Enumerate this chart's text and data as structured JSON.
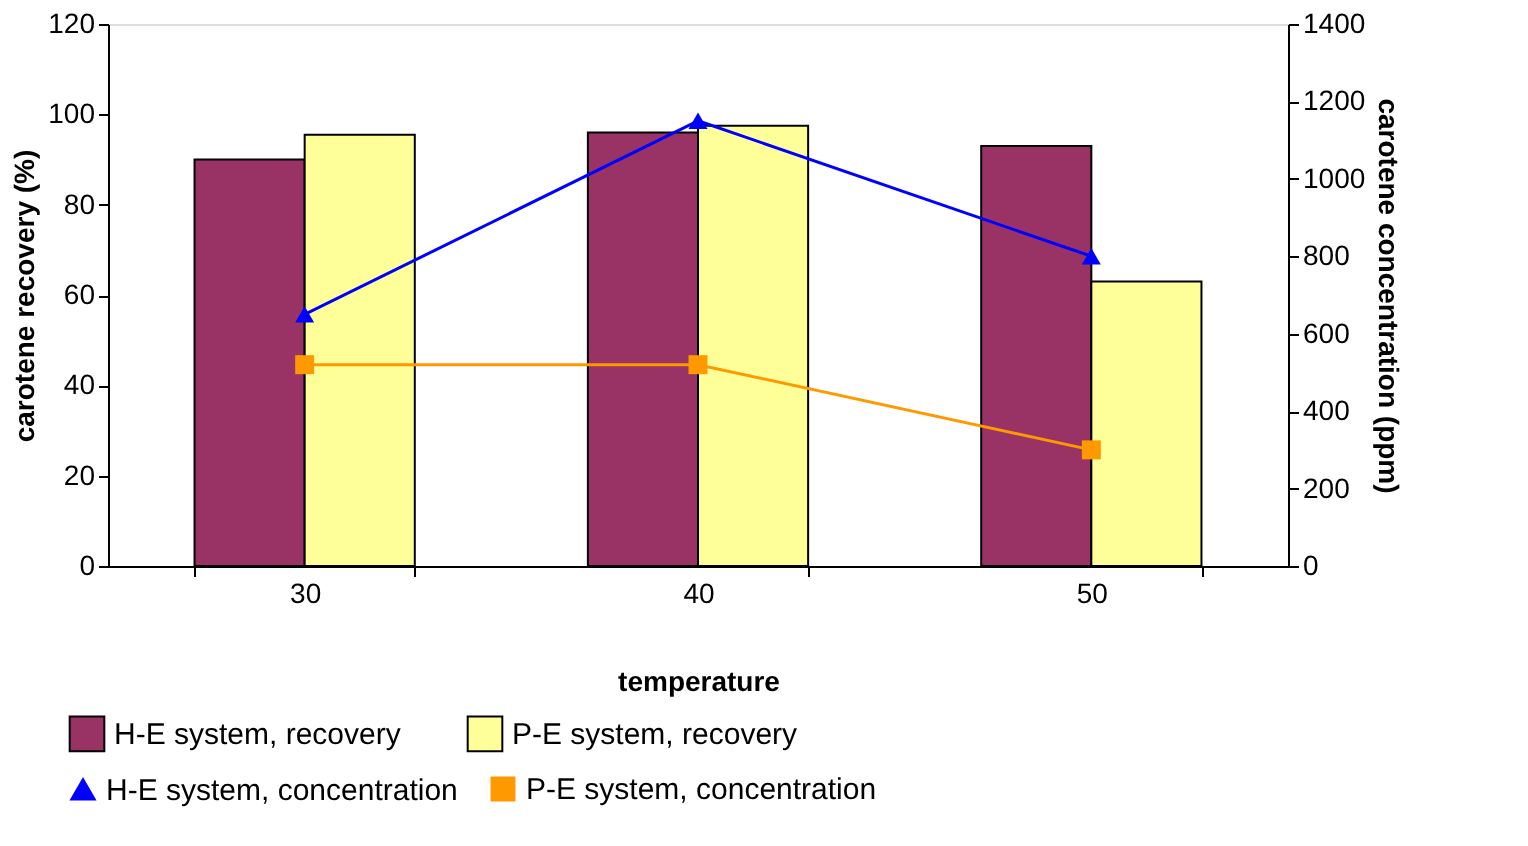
{
  "chart_data": {
    "type": "bar",
    "xlabel": "temperature",
    "ylabel": "carotene recovery (%)",
    "y2label": "carotene concentration (ppm)",
    "categories": [
      "30",
      "40",
      "50"
    ],
    "series": [
      {
        "name": "H-E system, recovery",
        "color": "#993366",
        "values": [
          90,
          96,
          93
        ]
      },
      {
        "name": "P-E system, recovery",
        "color": "#ffff99",
        "values": [
          95.5,
          97.5,
          63
        ]
      },
      {
        "name": "H-E system, concentration",
        "type": "line",
        "axis": "y2",
        "marker": "triangle",
        "color": "#0000ff",
        "values": [
          650,
          1150,
          800
        ]
      },
      {
        "name": "P-E system, concentration",
        "type": "line",
        "axis": "y2",
        "marker": "square",
        "color": "#ff9900",
        "values": [
          520,
          520,
          300
        ]
      }
    ],
    "ylim": [
      0,
      120
    ],
    "yticks": [
      0,
      20,
      40,
      60,
      80,
      100,
      120
    ],
    "y2lim": [
      0,
      1400
    ],
    "y2ticks": [
      0,
      200,
      400,
      600,
      800,
      1000,
      1200,
      1400
    ],
    "grid": false,
    "legend": "bottom",
    "line_style": "solid"
  }
}
